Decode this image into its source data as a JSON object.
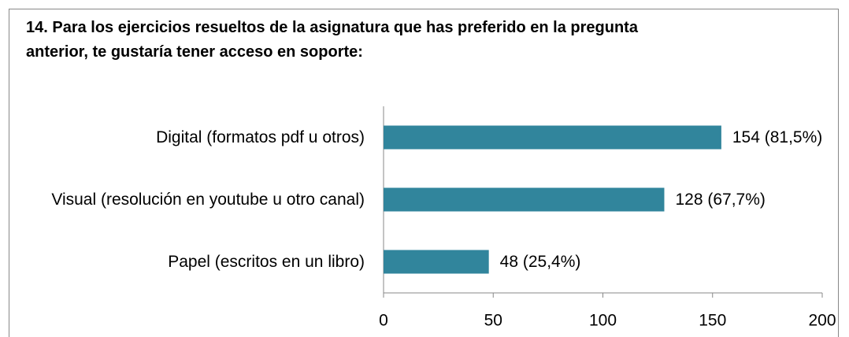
{
  "chart_data": {
    "type": "bar",
    "orientation": "horizontal",
    "title": "14. Para los ejercicios resueltos de la asignatura que has preferido en la pregunta anterior, te gustaría tener acceso en soporte:",
    "categories": [
      "Digital (formatos pdf u otros)",
      "Visual (resolución en youtube u otro canal)",
      "Papel (escritos en un libro)"
    ],
    "values": [
      154,
      128,
      48
    ],
    "value_labels": [
      "154 (81,5%)",
      "128 (67,7%)",
      "48 (25,4%)"
    ],
    "color": "#31859c",
    "xlim": [
      0,
      200
    ],
    "xticks": [
      0,
      50,
      100,
      150,
      200
    ],
    "grid": false
  }
}
